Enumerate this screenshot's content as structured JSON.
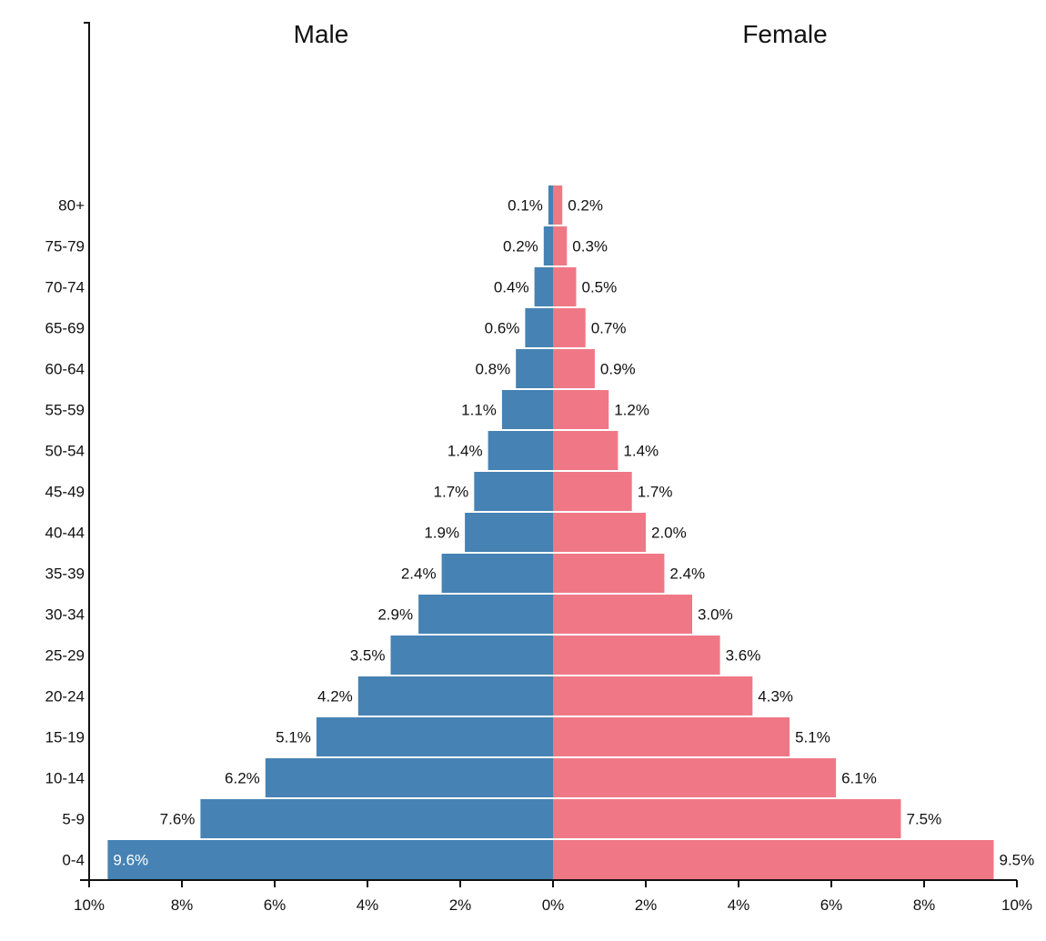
{
  "chart_data": {
    "type": "bar",
    "orientation": "horizontal-population-pyramid",
    "categories": [
      "0-4",
      "5-9",
      "10-14",
      "15-19",
      "20-24",
      "25-29",
      "30-34",
      "35-39",
      "40-44",
      "45-49",
      "50-54",
      "55-59",
      "60-64",
      "65-69",
      "70-74",
      "75-79",
      "80+"
    ],
    "series": [
      {
        "name": "Male",
        "values": [
          9.6,
          7.6,
          6.2,
          5.1,
          4.2,
          3.5,
          2.9,
          2.4,
          1.9,
          1.7,
          1.4,
          1.1,
          0.8,
          0.6,
          0.4,
          0.2,
          0.1
        ],
        "color": "#4682b4"
      },
      {
        "name": "Female",
        "values": [
          9.5,
          7.5,
          6.1,
          5.1,
          4.3,
          3.6,
          3.0,
          2.4,
          2.0,
          1.7,
          1.4,
          1.2,
          0.9,
          0.7,
          0.5,
          0.3,
          0.2
        ],
        "color": "#f07886"
      }
    ],
    "xticks": [
      "10%",
      "8%",
      "6%",
      "4%",
      "2%",
      "0%",
      "2%",
      "4%",
      "6%",
      "8%",
      "10%"
    ],
    "xlim": [
      -10,
      10
    ],
    "value_suffix": "%",
    "grid": false
  }
}
